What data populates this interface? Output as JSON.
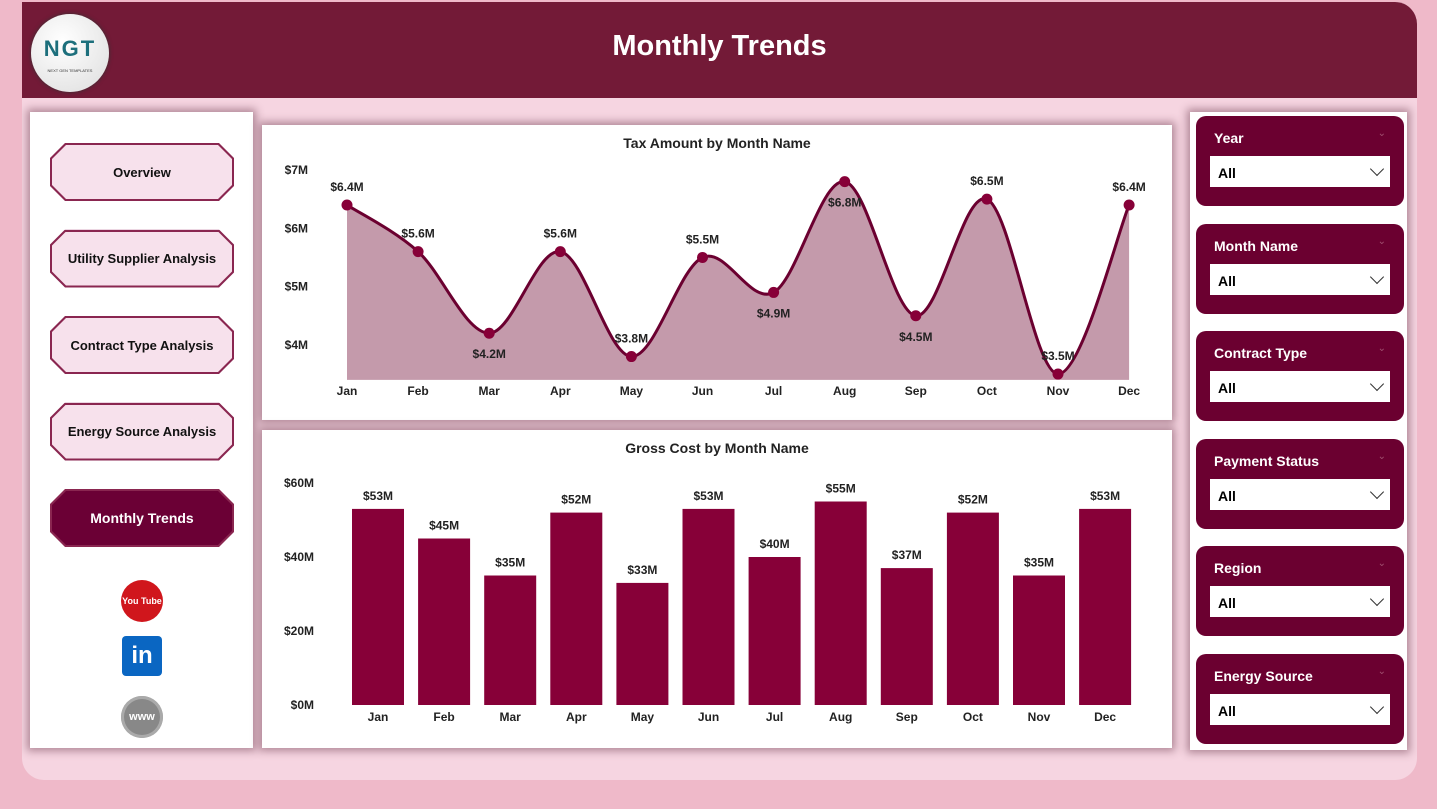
{
  "header": {
    "title": "Monthly Trends",
    "logo_text": "NGT",
    "logo_sub": "NEXT GEN TEMPLATES"
  },
  "nav": [
    {
      "label": "Overview",
      "active": false
    },
    {
      "label": "Utility Supplier Analysis",
      "active": false
    },
    {
      "label": "Contract Type Analysis",
      "active": false
    },
    {
      "label": "Energy Source Analysis",
      "active": false
    },
    {
      "label": "Monthly Trends",
      "active": true
    }
  ],
  "social": {
    "youtube": "You Tube",
    "linkedin": "in",
    "web": "www"
  },
  "filters": [
    {
      "label": "Year",
      "value": "All"
    },
    {
      "label": "Month Name",
      "value": "All"
    },
    {
      "label": "Contract Type",
      "value": "All"
    },
    {
      "label": "Payment Status",
      "value": "All"
    },
    {
      "label": "Region",
      "value": "All"
    },
    {
      "label": "Energy Source",
      "value": "All"
    }
  ],
  "colors": {
    "header": "#731a37",
    "accent": "#870038",
    "line": "#6b0030",
    "area": "#c49aab"
  },
  "chart_data": [
    {
      "type": "area",
      "title": "Tax Amount by Month Name",
      "categories": [
        "Jan",
        "Feb",
        "Mar",
        "Apr",
        "May",
        "Jun",
        "Jul",
        "Aug",
        "Sep",
        "Oct",
        "Nov",
        "Dec"
      ],
      "values": [
        6.4,
        5.6,
        4.2,
        5.6,
        3.8,
        5.5,
        4.9,
        6.8,
        4.5,
        6.5,
        3.5,
        6.4
      ],
      "labels": [
        "$6.4M",
        "$5.6M",
        "$4.2M",
        "$5.6M",
        "$3.8M",
        "$5.5M",
        "$4.9M",
        "$6.8M",
        "$4.5M",
        "$6.5M",
        "$3.5M",
        "$6.4M"
      ],
      "yticks": [
        "$4M",
        "$5M",
        "$6M",
        "$7M"
      ],
      "ytick_values": [
        4,
        5,
        6,
        7
      ],
      "ylim": [
        3.4,
        7
      ]
    },
    {
      "type": "bar",
      "title": "Gross Cost by Month Name",
      "categories": [
        "Jan",
        "Feb",
        "Mar",
        "Apr",
        "May",
        "Jun",
        "Jul",
        "Aug",
        "Sep",
        "Oct",
        "Nov",
        "Dec"
      ],
      "values": [
        53,
        45,
        35,
        52,
        33,
        53,
        40,
        55,
        37,
        52,
        35,
        53
      ],
      "labels": [
        "$53M",
        "$45M",
        "$35M",
        "$52M",
        "$33M",
        "$53M",
        "$40M",
        "$55M",
        "$37M",
        "$52M",
        "$35M",
        "$53M"
      ],
      "yticks": [
        "$0M",
        "$20M",
        "$40M",
        "$60M"
      ],
      "ytick_values": [
        0,
        20,
        40,
        60
      ],
      "ylim": [
        0,
        60
      ]
    }
  ]
}
